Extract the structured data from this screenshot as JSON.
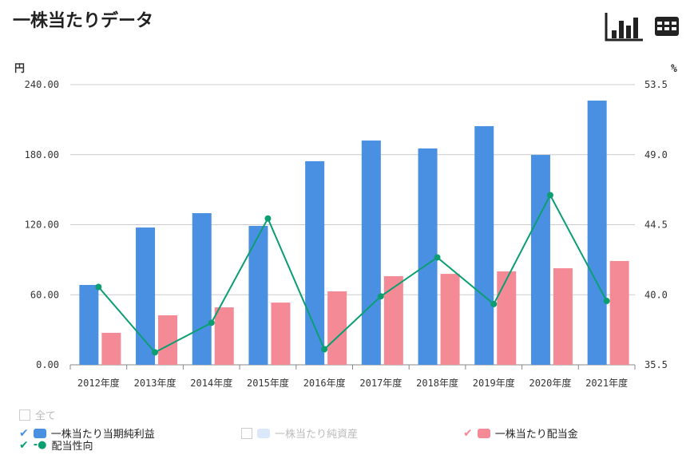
{
  "title": "一株当たりデータ",
  "toolbar": {
    "chart_icon": "bar-chart-icon",
    "table_icon": "table-icon"
  },
  "chart_data": {
    "type": "bar",
    "categories": [
      "2012年度",
      "2013年度",
      "2014年度",
      "2015年度",
      "2016年度",
      "2017年度",
      "2018年度",
      "2019年度",
      "2020年度",
      "2021年度"
    ],
    "left_axis": {
      "unit": "円",
      "ylim": [
        0,
        240
      ],
      "ticks": [
        "0.00",
        "60.00",
        "120.00",
        "180.00",
        "240.00"
      ]
    },
    "right_axis": {
      "unit": "%",
      "ylim": [
        35.5,
        53.5
      ],
      "ticks": [
        "35.5",
        "40.0",
        "44.5",
        "49.0",
        "53.5"
      ]
    },
    "series": [
      {
        "name": "一株当たり当期純利益",
        "type": "bar",
        "axis": "left",
        "color": "#4a90e2",
        "values": [
          68.4,
          117.6,
          129.9,
          119.0,
          174.4,
          192.1,
          185.3,
          204.4,
          179.8,
          226.3
        ]
      },
      {
        "name": "一株当たり配当金",
        "type": "bar",
        "axis": "left",
        "color": "#f48a96",
        "values": [
          27.4,
          42.4,
          49.2,
          53.3,
          62.9,
          75.9,
          77.9,
          80.0,
          82.7,
          88.9
        ]
      },
      {
        "name": "配当性向",
        "type": "line",
        "axis": "right",
        "color": "#0a9e72",
        "values": [
          40.5,
          36.3,
          38.2,
          44.9,
          36.5,
          39.9,
          42.4,
          39.4,
          46.4,
          39.6
        ]
      }
    ],
    "grid": true
  },
  "legend": {
    "all": "全て",
    "items": [
      {
        "label": "一株当たり当期純利益",
        "checked": true,
        "color": "#4a90e2"
      },
      {
        "label": "一株当たり純資産",
        "checked": false,
        "color": "#dbe8fa"
      },
      {
        "label": "一株当たり配当金",
        "checked": true,
        "color": "#f48a96"
      },
      {
        "label": "配当性向",
        "checked": true,
        "color": "#0a9e72"
      }
    ]
  }
}
